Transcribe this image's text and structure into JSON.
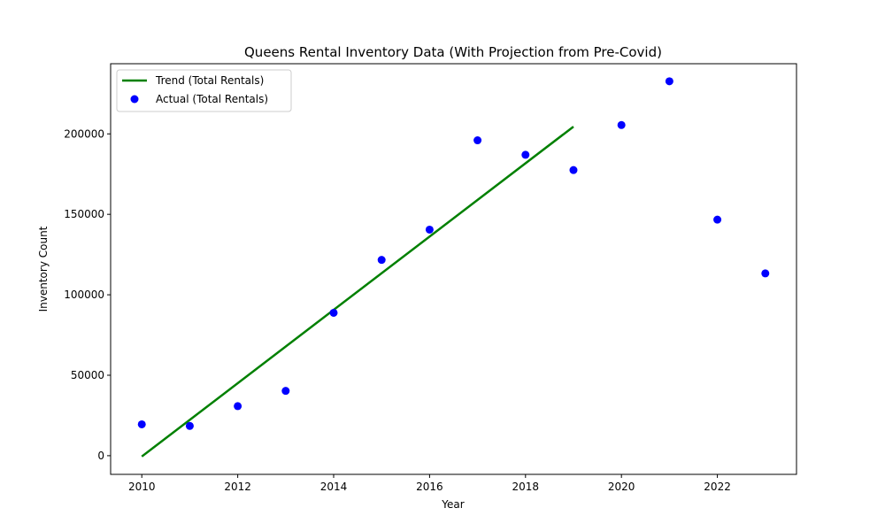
{
  "chart_data": {
    "type": "scatter",
    "title": "Queens Rental Inventory Data (With Projection from Pre-Covid)",
    "xlabel": "Year",
    "ylabel": "Inventory Count",
    "xlim": [
      2009.35,
      2023.65
    ],
    "ylim": [
      -11600,
      243600
    ],
    "xticks": [
      2010,
      2012,
      2014,
      2016,
      2018,
      2020,
      2022
    ],
    "yticks": [
      0,
      50000,
      100000,
      150000,
      200000
    ],
    "grid": false,
    "legend_position": "top-left",
    "series": [
      {
        "name": "Trend (Total Rentals)",
        "kind": "line",
        "color": "#008000",
        "x": [
          2010,
          2019
        ],
        "y": [
          -500,
          204500
        ]
      },
      {
        "name": "Actual (Total Rentals)",
        "kind": "scatter",
        "color": "#0000ff",
        "x": [
          2010,
          2011,
          2012,
          2013,
          2014,
          2015,
          2016,
          2017,
          2018,
          2019,
          2020,
          2021,
          2022,
          2023
        ],
        "y": [
          19500,
          18500,
          30800,
          40300,
          88800,
          121700,
          140500,
          196000,
          187000,
          177500,
          205500,
          232700,
          146700,
          113300
        ]
      }
    ]
  }
}
